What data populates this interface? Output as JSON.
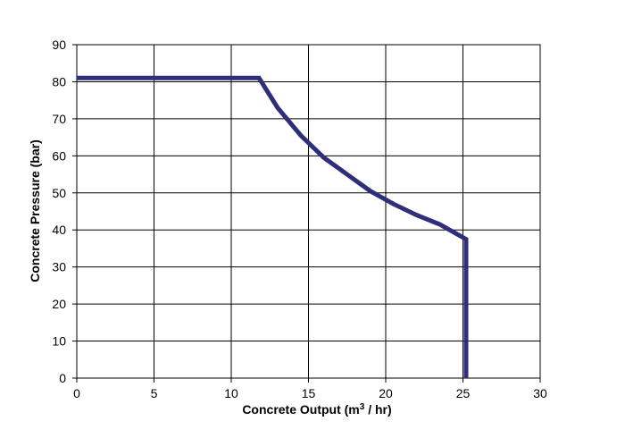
{
  "chart_data": {
    "type": "line",
    "title": "",
    "xlabel": "Concrete Output (m",
    "xlabel_sup": "3",
    "xlabel_suffix": " / hr)",
    "ylabel": "Concrete Pressure (bar)",
    "xlim": [
      0,
      30
    ],
    "ylim": [
      0,
      90
    ],
    "xticks": [
      0,
      5,
      10,
      15,
      20,
      25,
      30
    ],
    "yticks": [
      0,
      10,
      20,
      30,
      40,
      50,
      60,
      70,
      80,
      90
    ],
    "grid": true,
    "legend": "none",
    "series": [
      {
        "color": "#2e2e7a",
        "x": [
          0,
          11.8,
          13.0,
          14.5,
          16.0,
          17.5,
          19.0,
          20.5,
          22.0,
          23.5,
          25.2,
          25.2
        ],
        "y": [
          81,
          81,
          73,
          65.5,
          59.5,
          55,
          50.5,
          47,
          44,
          41.5,
          37.5,
          0
        ]
      }
    ]
  }
}
